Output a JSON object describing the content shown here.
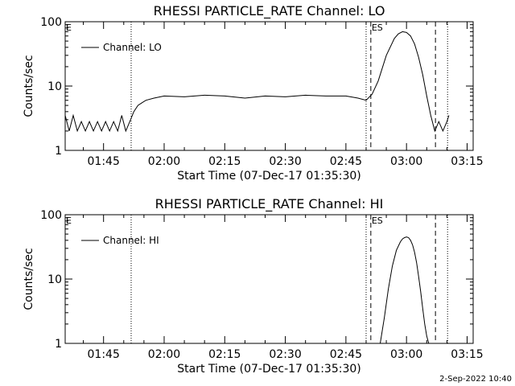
{
  "footer": {
    "date": "2-Sep-2022 10:40"
  },
  "chart_data": [
    {
      "type": "line",
      "title": "RHESSI PARTICLE_RATE Channel: LO",
      "xlabel": "Start Time (07-Dec-17 01:35:30)",
      "ylabel": "Counts/sec",
      "yscale": "log",
      "ylim": [
        1,
        100
      ],
      "xlim": [
        "01:35:30",
        "03:16:30"
      ],
      "x_ticks": [
        "01:45",
        "02:00",
        "02:15",
        "02:30",
        "02:45",
        "03:00",
        "03:15"
      ],
      "y_ticks": [
        "1",
        "10",
        "100"
      ],
      "legend": {
        "position": "top-left",
        "entries": [
          "Channel: LO"
        ]
      },
      "markers": [
        {
          "label": "E",
          "time": "01:35:30",
          "style": "none"
        },
        {
          "label": "",
          "time": "01:51:50",
          "style": "dotted"
        },
        {
          "label": "",
          "time": "02:50:00",
          "style": "dotted"
        },
        {
          "label": "ES",
          "time": "02:51:10",
          "style": "dashed"
        },
        {
          "label": "",
          "time": "03:07:10",
          "style": "dashed"
        },
        {
          "label": "",
          "time": "03:10:10",
          "style": "dotted"
        }
      ],
      "series": [
        {
          "name": "Channel: LO",
          "x": [
            "01:35:30",
            "01:36:30",
            "01:37:30",
            "01:38:30",
            "01:39:30",
            "01:40:30",
            "01:41:30",
            "01:42:30",
            "01:43:30",
            "01:44:30",
            "01:45:30",
            "01:46:30",
            "01:47:30",
            "01:48:30",
            "01:49:30",
            "01:50:30",
            "01:51:30",
            "01:52:30",
            "01:53:30",
            "01:54:30",
            "01:55:30",
            "01:57:30",
            "02:00:00",
            "02:05:00",
            "02:10:00",
            "02:15:00",
            "02:20:00",
            "02:25:00",
            "02:30:00",
            "02:35:00",
            "02:40:00",
            "02:45:00",
            "02:48:00",
            "02:50:00",
            "02:51:30",
            "02:53:00",
            "02:55:00",
            "02:57:00",
            "02:58:00",
            "02:59:00",
            "03:00:00",
            "03:01:00",
            "03:02:00",
            "03:03:00",
            "03:04:00",
            "03:05:00",
            "03:06:00",
            "03:07:00",
            "03:08:00",
            "03:09:00",
            "03:10:00",
            "03:10:30"
          ],
          "y": [
            3.5,
            2.0,
            3.5,
            2.0,
            2.8,
            2.0,
            2.8,
            2.0,
            2.8,
            2.0,
            2.8,
            2.0,
            2.8,
            2.0,
            3.5,
            2.0,
            2.8,
            4.0,
            5.0,
            5.5,
            6.0,
            6.5,
            7.0,
            6.8,
            7.2,
            7.0,
            6.5,
            7.0,
            6.8,
            7.2,
            7.0,
            7.0,
            6.5,
            6.0,
            7.5,
            12.0,
            30.0,
            55.0,
            65.0,
            70.0,
            68.0,
            60.0,
            45.0,
            28.0,
            15.0,
            7.0,
            3.5,
            2.0,
            2.8,
            2.0,
            2.8,
            3.5
          ]
        }
      ]
    },
    {
      "type": "line",
      "title": "RHESSI PARTICLE_RATE Channel: HI",
      "xlabel": "Start Time (07-Dec-17 01:35:30)",
      "ylabel": "Counts/sec",
      "yscale": "log",
      "ylim": [
        1,
        100
      ],
      "xlim": [
        "01:35:30",
        "03:16:30"
      ],
      "x_ticks": [
        "01:45",
        "02:00",
        "02:15",
        "02:30",
        "02:45",
        "03:00",
        "03:15"
      ],
      "y_ticks": [
        "1",
        "10",
        "100"
      ],
      "legend": {
        "position": "top-left",
        "entries": [
          "Channel: HI"
        ]
      },
      "markers": [
        {
          "label": "E",
          "time": "01:35:30",
          "style": "none"
        },
        {
          "label": "",
          "time": "01:51:50",
          "style": "dotted"
        },
        {
          "label": "",
          "time": "02:50:00",
          "style": "dotted"
        },
        {
          "label": "ES",
          "time": "02:51:10",
          "style": "dashed"
        },
        {
          "label": "",
          "time": "03:07:10",
          "style": "dashed"
        },
        {
          "label": "",
          "time": "03:10:10",
          "style": "dotted"
        }
      ],
      "series": [
        {
          "name": "Channel: HI",
          "x": [
            "02:53:30",
            "02:54:30",
            "02:55:30",
            "02:56:30",
            "02:57:30",
            "02:58:30",
            "02:59:00",
            "02:59:30",
            "03:00:00",
            "03:00:30",
            "03:01:00",
            "03:01:30",
            "03:02:00",
            "03:02:30",
            "03:03:00",
            "03:03:30",
            "03:04:00",
            "03:04:30",
            "03:05:00",
            "03:05:30"
          ],
          "y": [
            1.0,
            2.5,
            7.0,
            16.0,
            28.0,
            38.0,
            42.0,
            44.0,
            45.0,
            44.0,
            40.0,
            34.0,
            26.0,
            18.0,
            11.0,
            6.5,
            3.5,
            2.0,
            1.3,
            1.0
          ]
        }
      ]
    }
  ]
}
